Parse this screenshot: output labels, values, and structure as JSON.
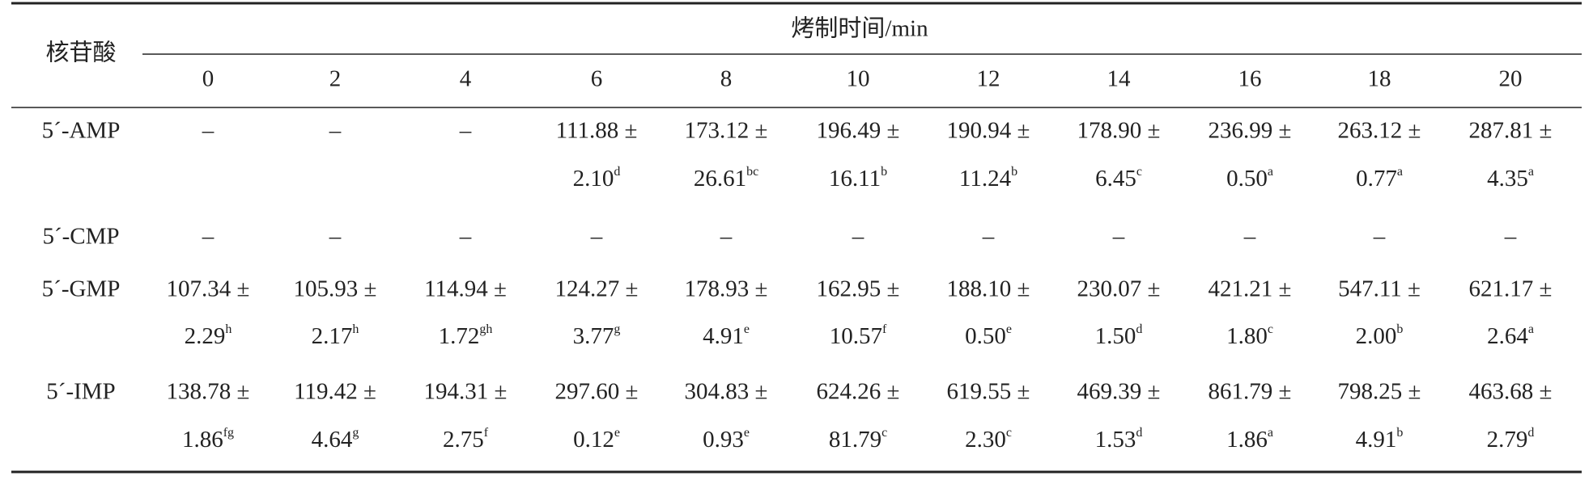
{
  "header": {
    "row_label": "核苷酸",
    "group": "烤制时间/min",
    "columns": [
      "0",
      "2",
      "4",
      "6",
      "8",
      "10",
      "12",
      "14",
      "16",
      "18",
      "20"
    ]
  },
  "rows": [
    {
      "label": "5´-AMP",
      "cells": [
        "–",
        "–",
        "–",
        {
          "mean": "111.88 ±",
          "sd": "2.10",
          "sig": "d"
        },
        {
          "mean": "173.12 ±",
          "sd": "26.61",
          "sig": "bc"
        },
        {
          "mean": "196.49 ±",
          "sd": "16.11",
          "sig": "b"
        },
        {
          "mean": "190.94 ±",
          "sd": "11.24",
          "sig": "b"
        },
        {
          "mean": "178.90 ±",
          "sd": "6.45",
          "sig": "c"
        },
        {
          "mean": "236.99 ±",
          "sd": "0.50",
          "sig": "a"
        },
        {
          "mean": "263.12 ±",
          "sd": "0.77",
          "sig": "a"
        },
        {
          "mean": "287.81 ±",
          "sd": "4.35",
          "sig": "a"
        }
      ]
    },
    {
      "label": "5´-CMP",
      "cells": [
        "–",
        "–",
        "–",
        "–",
        "–",
        "–",
        "–",
        "–",
        "–",
        "–",
        "–"
      ]
    },
    {
      "label": "5´-GMP",
      "cells": [
        {
          "mean": "107.34 ±",
          "sd": "2.29",
          "sig": "h"
        },
        {
          "mean": "105.93 ±",
          "sd": "2.17",
          "sig": "h"
        },
        {
          "mean": "114.94 ±",
          "sd": "1.72",
          "sig": "gh"
        },
        {
          "mean": "124.27 ±",
          "sd": "3.77",
          "sig": "g"
        },
        {
          "mean": "178.93 ±",
          "sd": "4.91",
          "sig": "e"
        },
        {
          "mean": "162.95 ±",
          "sd": "10.57",
          "sig": "f"
        },
        {
          "mean": "188.10 ±",
          "sd": "0.50",
          "sig": "e"
        },
        {
          "mean": "230.07 ±",
          "sd": "1.50",
          "sig": "d"
        },
        {
          "mean": "421.21 ±",
          "sd": "1.80",
          "sig": "c"
        },
        {
          "mean": "547.11 ±",
          "sd": "2.00",
          "sig": "b"
        },
        {
          "mean": "621.17 ±",
          "sd": "2.64",
          "sig": "a"
        }
      ]
    },
    {
      "label": "5´-IMP",
      "cells": [
        {
          "mean": "138.78 ±",
          "sd": "1.86",
          "sig": "fg"
        },
        {
          "mean": "119.42 ±",
          "sd": "4.64",
          "sig": "g"
        },
        {
          "mean": "194.31 ±",
          "sd": "2.75",
          "sig": "f"
        },
        {
          "mean": "297.60 ±",
          "sd": "0.12",
          "sig": "e"
        },
        {
          "mean": "304.83 ±",
          "sd": "0.93",
          "sig": "e"
        },
        {
          "mean": "624.26 ±",
          "sd": "81.79",
          "sig": "c"
        },
        {
          "mean": "619.55 ±",
          "sd": "2.30",
          "sig": "c"
        },
        {
          "mean": "469.39 ±",
          "sd": "1.53",
          "sig": "d"
        },
        {
          "mean": "861.79 ±",
          "sd": "1.86",
          "sig": "a"
        },
        {
          "mean": "798.25 ±",
          "sd": "4.91",
          "sig": "b"
        },
        {
          "mean": "463.68 ±",
          "sd": "2.79",
          "sig": "d"
        }
      ]
    }
  ]
}
